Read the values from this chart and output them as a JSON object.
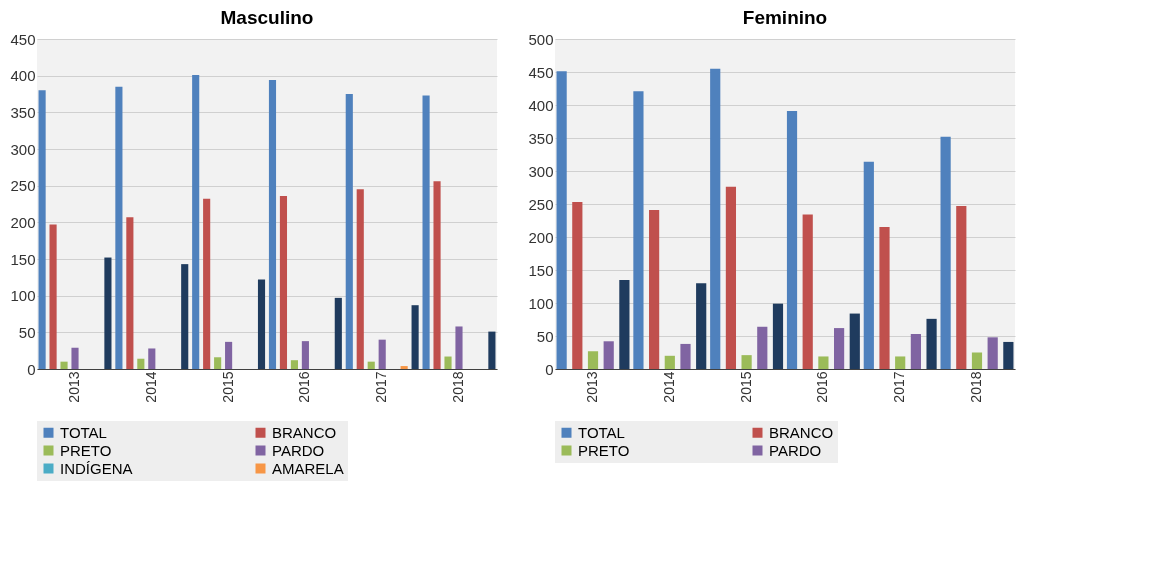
{
  "chart_data": [
    {
      "type": "bar",
      "title": "Masculino",
      "categories": [
        "2013",
        "2014",
        "2015",
        "2016",
        "2017",
        "2018"
      ],
      "ylim": [
        0,
        450
      ],
      "yticks": [
        0,
        50,
        100,
        150,
        200,
        250,
        300,
        350,
        400,
        450
      ],
      "grid": "y",
      "legend": "bottom",
      "series": [
        {
          "name": "TOTAL",
          "color": "#4f81bd",
          "values": [
            380,
            385,
            401,
            394,
            375,
            373
          ]
        },
        {
          "name": "BRANCO",
          "color": "#c0504d",
          "values": [
            197,
            207,
            232,
            236,
            245,
            256
          ]
        },
        {
          "name": "PRETO",
          "color": "#9bbb59",
          "values": [
            10,
            14,
            16,
            12,
            10,
            17
          ]
        },
        {
          "name": "PARDO",
          "color": "#8064a2",
          "values": [
            29,
            28,
            37,
            38,
            40,
            58
          ]
        },
        {
          "name": "INDÍGENA",
          "color": "#4bacc6",
          "values": [
            0,
            0,
            0,
            0,
            0,
            0
          ]
        },
        {
          "name": "AMARELA",
          "color": "#f79646",
          "values": [
            0,
            0,
            0,
            0,
            4,
            0
          ]
        },
        {
          "color": "#1f3b5e",
          "values": [
            152,
            143,
            122,
            97,
            87,
            51
          ]
        }
      ]
    },
    {
      "type": "bar",
      "title": "Feminino",
      "categories": [
        "2013",
        "2014",
        "2015",
        "2016",
        "2017",
        "2018"
      ],
      "ylim": [
        0,
        500
      ],
      "yticks": [
        0,
        50,
        100,
        150,
        200,
        250,
        300,
        350,
        400,
        450,
        500
      ],
      "grid": "y",
      "legend": "bottom",
      "series": [
        {
          "name": "TOTAL",
          "color": "#4f81bd",
          "values": [
            451,
            421,
            455,
            391,
            314,
            352
          ]
        },
        {
          "name": "BRANCO",
          "color": "#c0504d",
          "values": [
            253,
            241,
            276,
            234,
            215,
            247
          ]
        },
        {
          "name": "PRETO",
          "color": "#9bbb59",
          "values": [
            27,
            20,
            21,
            19,
            19,
            25
          ]
        },
        {
          "name": "PARDO",
          "color": "#8064a2",
          "values": [
            42,
            38,
            64,
            62,
            53,
            48
          ]
        },
        {
          "color": "#1f3b5e",
          "values": [
            135,
            130,
            99,
            84,
            76,
            41
          ]
        }
      ]
    }
  ]
}
